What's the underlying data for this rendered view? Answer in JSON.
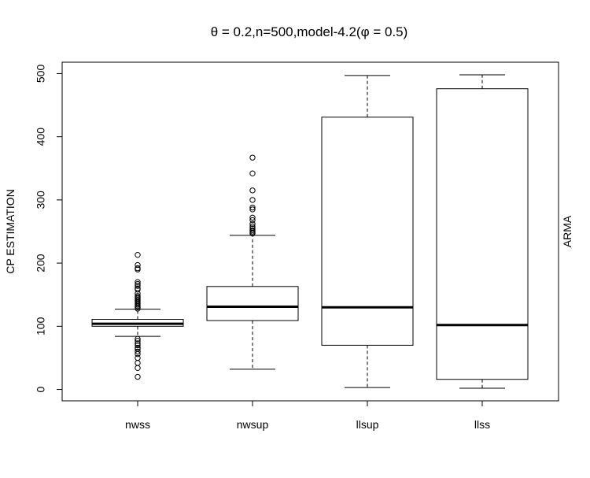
{
  "chart_data": {
    "type": "boxplot",
    "title": "θ = 0.2,n=500,model-4.2(φ = 0.5)",
    "xlabel": "",
    "ylabel": "CP ESTIMATION",
    "right_label": "ARMA",
    "ylim": [
      -18,
      518
    ],
    "yticks": [
      0,
      100,
      200,
      300,
      400,
      500
    ],
    "categories": [
      "nwss",
      "nwsup",
      "llsup",
      "llss"
    ],
    "boxes": [
      {
        "name": "nwss",
        "whisker_low": 84,
        "q1": 100,
        "median": 104,
        "q3": 111,
        "whisker_high": 127,
        "outliers": [
          213,
          197,
          192,
          190,
          170,
          167,
          164,
          160,
          158,
          152,
          148,
          146,
          144,
          142,
          140,
          138,
          136,
          134,
          132,
          130,
          128,
          80,
          77,
          73,
          70,
          66,
          64,
          60,
          56,
          50,
          42,
          34,
          20
        ]
      },
      {
        "name": "nwsup",
        "whisker_low": 32,
        "q1": 109,
        "median": 131,
        "q3": 163,
        "whisker_high": 244,
        "outliers": [
          367,
          342,
          315,
          300,
          288,
          285,
          272,
          268,
          262,
          258,
          255,
          252,
          250,
          248,
          247
        ]
      },
      {
        "name": "llsup",
        "whisker_low": 3,
        "q1": 70,
        "median": 130,
        "q3": 431,
        "whisker_high": 497,
        "outliers": []
      },
      {
        "name": "llss",
        "whisker_low": 2,
        "q1": 16,
        "median": 102,
        "q3": 476,
        "whisker_high": 498,
        "outliers": []
      }
    ]
  }
}
